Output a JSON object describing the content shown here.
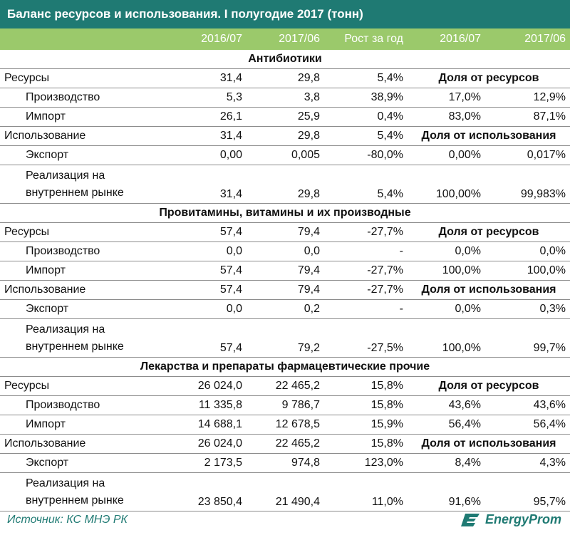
{
  "title": "Баланс ресурсов и использования. I полугодие 2017 (тонн)",
  "headers": [
    "",
    "2016/07",
    "2017/06",
    "Рост за год",
    "2016/07",
    "2017/06"
  ],
  "sections": [
    {
      "name": "Антибиотики",
      "rows": [
        {
          "label": "Ресурсы",
          "v1": "31,4",
          "v2": "29,8",
          "g": "5,4%",
          "share_label": "Доля от ресурсов"
        },
        {
          "label": "Производство",
          "v1": "5,3",
          "v2": "3,8",
          "g": "38,9%",
          "s1": "17,0%",
          "s2": "12,9%"
        },
        {
          "label": "Импорт",
          "v1": "26,1",
          "v2": "25,9",
          "g": "0,4%",
          "s1": "83,0%",
          "s2": "87,1%"
        },
        {
          "label": "Использование",
          "v1": "31,4",
          "v2": "29,8",
          "g": "5,4%",
          "share_label": "Доля от использования"
        },
        {
          "label": "Экспорт",
          "v1": "0,00",
          "v2": "0,005",
          "g": "-80,0%",
          "s1": "0,00%",
          "s2": "0,017%"
        },
        {
          "label": "Реализация на внутреннем рынке",
          "v1": "31,4",
          "v2": "29,8",
          "g": "5,4%",
          "s1": "100,00%",
          "s2": "99,983%"
        }
      ]
    },
    {
      "name": "Провитамины, витамины и их производные",
      "rows": [
        {
          "label": "Ресурсы",
          "v1": "57,4",
          "v2": "79,4",
          "g": "-27,7%",
          "share_label": "Доля от ресурсов"
        },
        {
          "label": "Производство",
          "v1": "0,0",
          "v2": "0,0",
          "g": "-",
          "s1": "0,0%",
          "s2": "0,0%"
        },
        {
          "label": "Импорт",
          "v1": "57,4",
          "v2": "79,4",
          "g": "-27,7%",
          "s1": "100,0%",
          "s2": "100,0%"
        },
        {
          "label": "Использование",
          "v1": "57,4",
          "v2": "79,4",
          "g": "-27,7%",
          "share_label": "Доля от использования"
        },
        {
          "label": "Экспорт",
          "v1": "0,0",
          "v2": "0,2",
          "g": "-",
          "s1": "0,0%",
          "s2": "0,3%"
        },
        {
          "label": "Реализация на внутреннем рынке",
          "v1": "57,4",
          "v2": "79,2",
          "g": "-27,5%",
          "s1": "100,0%",
          "s2": "99,7%"
        }
      ]
    },
    {
      "name": "Лекарства и препараты фармацевтические прочие",
      "rows": [
        {
          "label": "Ресурсы",
          "v1": "26 024,0",
          "v2": "22 465,2",
          "g": "15,8%",
          "share_label": "Доля от ресурсов"
        },
        {
          "label": "Производство",
          "v1": "11 335,8",
          "v2": "9 786,7",
          "g": "15,8%",
          "s1": "43,6%",
          "s2": "43,6%"
        },
        {
          "label": "Импорт",
          "v1": "14 688,1",
          "v2": "12 678,5",
          "g": "15,9%",
          "s1": "56,4%",
          "s2": "56,4%"
        },
        {
          "label": "Использование",
          "v1": "26 024,0",
          "v2": "22 465,2",
          "g": "15,8%",
          "share_label": "Доля от использования"
        },
        {
          "label": "Экспорт",
          "v1": "2 173,5",
          "v2": "974,8",
          "g": "123,0%",
          "s1": "8,4%",
          "s2": "4,3%"
        },
        {
          "label": "Реализация на внутреннем рынке",
          "v1": "23 850,4",
          "v2": "21 490,4",
          "g": "11,0%",
          "s1": "91,6%",
          "s2": "95,7%"
        }
      ]
    }
  ],
  "footer": {
    "source": "Источник: КС МНЭ РК",
    "logo_text": "EnergyProm",
    "logo_icon": "energyprom-logo-icon"
  },
  "colors": {
    "title_bg": "#1f7a73",
    "header_bg": "#9bc96b",
    "accent": "#1f7a73"
  }
}
